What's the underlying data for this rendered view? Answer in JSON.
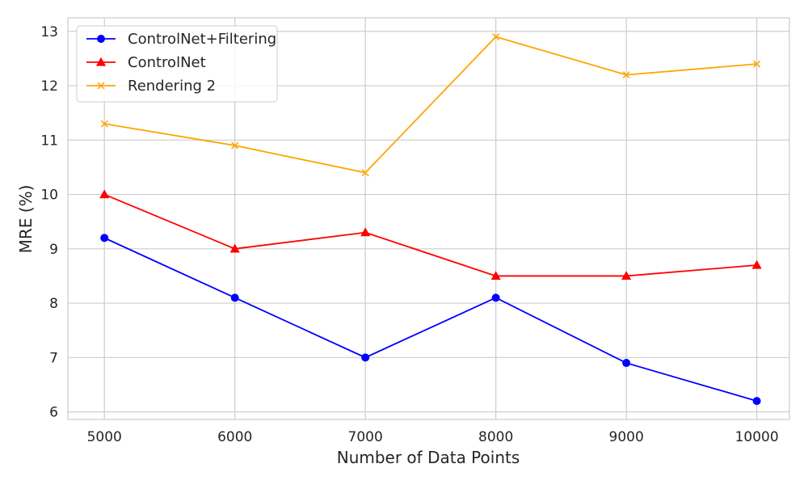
{
  "chart_data": {
    "type": "line",
    "title": "",
    "xlabel": "Number of Data Points",
    "ylabel": "MRE (%)",
    "x": [
      5000,
      6000,
      7000,
      8000,
      9000,
      10000
    ],
    "xticks": [
      5000,
      6000,
      7000,
      8000,
      9000,
      10000
    ],
    "yticks": [
      6,
      7,
      8,
      9,
      10,
      11,
      12,
      13
    ],
    "xlim": [
      4720,
      10250
    ],
    "ylim": [
      5.86,
      13.25
    ],
    "grid": true,
    "legend_position": "upper-left",
    "series": [
      {
        "name": "ControlNet+Filtering",
        "color": "#0000ff",
        "marker": "circle",
        "values": [
          9.2,
          8.1,
          7.0,
          8.1,
          6.9,
          6.2
        ]
      },
      {
        "name": "ControlNet",
        "color": "#ff0000",
        "marker": "triangle",
        "values": [
          10.0,
          9.0,
          9.3,
          8.5,
          8.5,
          8.7
        ]
      },
      {
        "name": "Rendering 2",
        "color": "#ffa500",
        "marker": "x",
        "values": [
          11.3,
          10.9,
          10.4,
          12.9,
          12.2,
          12.4
        ]
      }
    ]
  }
}
